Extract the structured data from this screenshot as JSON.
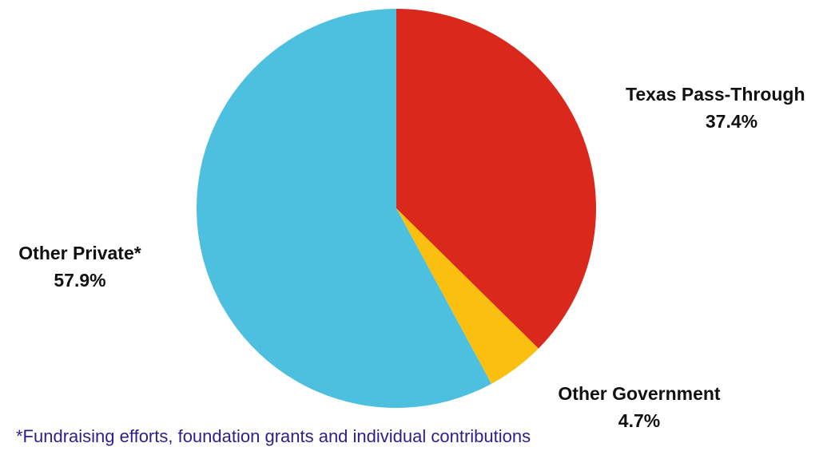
{
  "chart_data": {
    "type": "pie",
    "slices": [
      {
        "label": "Texas Pass-Through",
        "value": 37.4,
        "value_label": "37.4%",
        "color": "#da291c"
      },
      {
        "label": "Other Government",
        "value": 4.7,
        "value_label": "4.7%",
        "color": "#fbbf10"
      },
      {
        "label": "Other Private*",
        "value": 57.9,
        "value_label": "57.9%",
        "color": "#4ec0df"
      }
    ],
    "start_angle": "12 o'clock",
    "direction": "clockwise",
    "legend": "none",
    "footnote": "*Fundraising efforts, foundation grants and individual contributions"
  }
}
